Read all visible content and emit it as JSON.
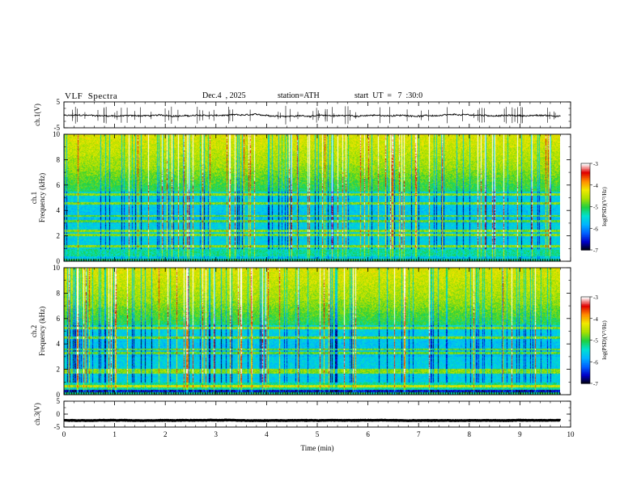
{
  "header": {
    "title": "VLF  Spectra",
    "date": "Dec.4  , 2025",
    "station": "station=ATH",
    "start": "start  UT  =   7  :30:0"
  },
  "colors": {
    "colormap": [
      "#000000",
      "#0000c8",
      "#0060ff",
      "#00b4ff",
      "#00e0d0",
      "#20d040",
      "#a8e000",
      "#f0e800",
      "#ff8c00",
      "#e00000",
      "#ffffff"
    ],
    "trace": "#000000"
  },
  "chart_data": [
    {
      "name": "ch1-waveform",
      "type": "line",
      "ylabel": "ch.1(V)",
      "ylim": [
        -5,
        5
      ],
      "yticks": [
        "5",
        "-5"
      ],
      "xlim": [
        0,
        10
      ],
      "baseline": -0.3,
      "noise_amplitude": 0.5
    },
    {
      "name": "ch1-spectrogram",
      "type": "heatmap",
      "ylabel": [
        "ch.1",
        "Frequency  (kHz)"
      ],
      "ylim": [
        0,
        10
      ],
      "yticks": [
        "0",
        "2",
        "4",
        "6",
        "8",
        "10"
      ],
      "xlim": [
        0,
        9.8
      ],
      "colorbar": {
        "label": "log(PSD)(V²/Hz)",
        "ticks": [
          "-3",
          "-4",
          "-5",
          "-6",
          "-7"
        ],
        "range": [
          -7,
          -3
        ]
      },
      "bands_khz": [
        0.3,
        1.2,
        2.1,
        2.4,
        3.2,
        3.6,
        4.6,
        5.3
      ]
    },
    {
      "name": "ch2-spectrogram",
      "type": "heatmap",
      "ylabel": [
        "ch.2",
        "Frequency  (kHz)"
      ],
      "ylim": [
        0,
        10
      ],
      "yticks": [
        "0",
        "2",
        "4",
        "6",
        "8",
        "10"
      ],
      "xlim": [
        0,
        9.8
      ],
      "colorbar": {
        "label": "log(PSD)(V²/Hz)",
        "ticks": [
          "-3",
          "-4",
          "-5",
          "-6",
          "-7"
        ],
        "range": [
          -7,
          -3
        ]
      },
      "bands_khz": [
        0.7,
        1.8,
        2.0,
        3.3,
        3.6,
        4.5,
        5.3
      ]
    },
    {
      "name": "ch3-waveform",
      "type": "line",
      "ylabel": "ch.3(V)",
      "ylim": [
        -5,
        5
      ],
      "yticks": [
        "5",
        "0",
        "-5"
      ],
      "xlim": [
        0,
        10
      ],
      "baseline": -2.4,
      "noise_amplitude": 0.15
    }
  ],
  "xaxis": {
    "label": "Time  (min)",
    "ticks": [
      "0",
      "1",
      "2",
      "3",
      "4",
      "5",
      "6",
      "7",
      "8",
      "9",
      "10"
    ],
    "range": [
      0,
      10
    ]
  }
}
